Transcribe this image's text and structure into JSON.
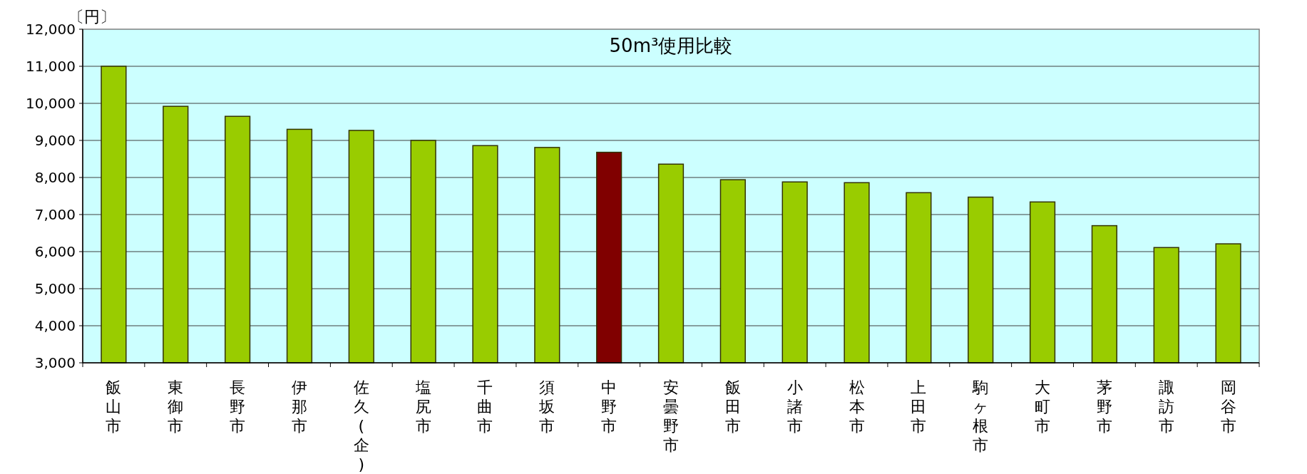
{
  "chart_data": {
    "type": "bar",
    "title": "50m³使用比較",
    "ylabel": "〔円〕",
    "categories": [
      "飯山市",
      "東御市",
      "長野市",
      "伊那市",
      "佐久(企)",
      "塩尻市",
      "千曲市",
      "須坂市",
      "中野市",
      "安曇野市",
      "飯田市",
      "小諸市",
      "松本市",
      "上田市",
      "駒ヶ根市",
      "大町市",
      "茅野市",
      "諏訪市",
      "岡谷市"
    ],
    "values": [
      11000,
      9920,
      9650,
      9300,
      9270,
      9000,
      8860,
      8810,
      8680,
      8360,
      7940,
      7880,
      7860,
      7590,
      7470,
      7340,
      6700,
      6110,
      6210
    ],
    "colors": [
      "#99cc00",
      "#99cc00",
      "#99cc00",
      "#99cc00",
      "#99cc00",
      "#99cc00",
      "#99cc00",
      "#99cc00",
      "#800000",
      "#99cc00",
      "#99cc00",
      "#99cc00",
      "#99cc00",
      "#99cc00",
      "#99cc00",
      "#99cc00",
      "#99cc00",
      "#99cc00",
      "#99cc00"
    ],
    "ylim": [
      3000,
      12000
    ],
    "yticks": [
      {
        "value": 3000,
        "label": "3,000"
      },
      {
        "value": 4000,
        "label": "4,000"
      },
      {
        "value": 5000,
        "label": "5,000"
      },
      {
        "value": 6000,
        "label": "6,000"
      },
      {
        "value": 7000,
        "label": "7,000"
      },
      {
        "value": 8000,
        "label": "8,000"
      },
      {
        "value": 9000,
        "label": "9,000"
      },
      {
        "value": 10000,
        "label": "10,000"
      },
      {
        "value": 11000,
        "label": "11,000"
      },
      {
        "value": 12000,
        "label": "12,000"
      }
    ],
    "grid": "y"
  }
}
